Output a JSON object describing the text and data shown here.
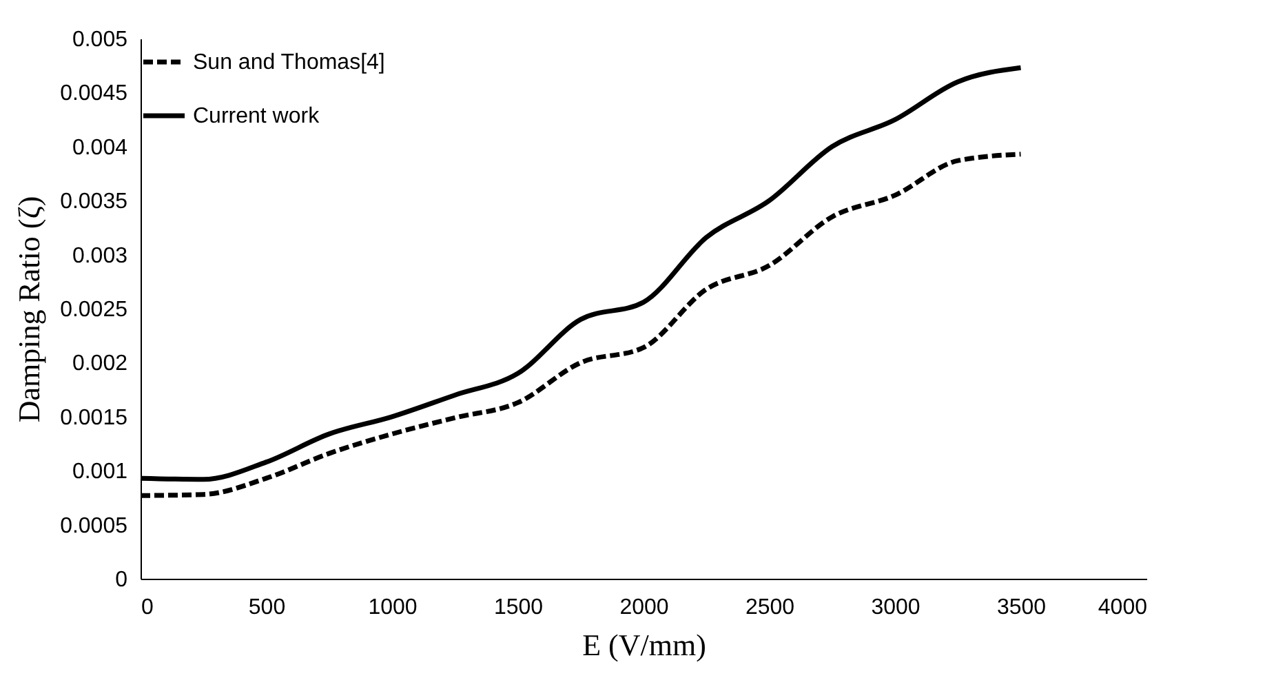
{
  "chart_data": {
    "type": "line",
    "xlabel": "E (V/mm)",
    "ylabel": "Damping Ratio (ζ)",
    "x": [
      0,
      250,
      500,
      750,
      1000,
      1250,
      1500,
      1750,
      2000,
      2250,
      2500,
      2750,
      3000,
      3250,
      3500
    ],
    "series": [
      {
        "name": "Sun and Thomas[4]",
        "color": "#000000",
        "line_style": "dashed",
        "values": [
          0.00077,
          0.00078,
          0.00093,
          0.00116,
          0.00134,
          0.00149,
          0.00163,
          0.002,
          0.00214,
          0.00268,
          0.0029,
          0.00335,
          0.00355,
          0.00387,
          0.00393
        ]
      },
      {
        "name": "Current work",
        "color": "#000000",
        "line_style": "solid",
        "values": [
          0.00093,
          0.00092,
          0.00108,
          0.00134,
          0.0015,
          0.0017,
          0.0019,
          0.0024,
          0.00256,
          0.00316,
          0.0035,
          0.004,
          0.00425,
          0.0046,
          0.00473
        ]
      }
    ],
    "xlim": [
      0,
      4000
    ],
    "xticks": [
      0,
      500,
      1000,
      1500,
      2000,
      2500,
      3000,
      3500,
      4000
    ],
    "ylim": [
      0,
      0.005
    ],
    "yticks": [
      0,
      0.0005,
      0.001,
      0.0015,
      0.002,
      0.0025,
      0.003,
      0.0035,
      0.004,
      0.0045,
      0.005
    ],
    "grid": false,
    "legend": "top left"
  }
}
